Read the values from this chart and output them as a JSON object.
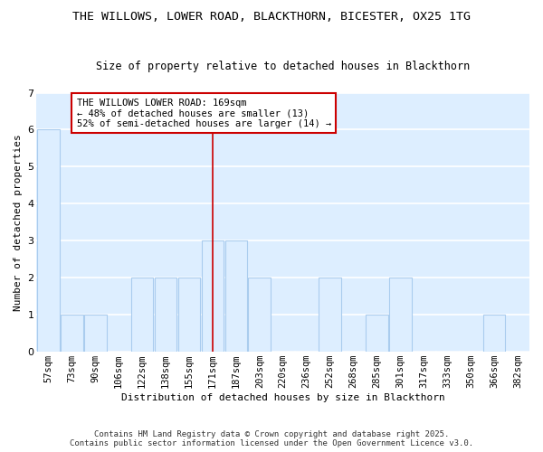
{
  "title_line1": "THE WILLOWS, LOWER ROAD, BLACKTHORN, BICESTER, OX25 1TG",
  "title_line2": "Size of property relative to detached houses in Blackthorn",
  "xlabel": "Distribution of detached houses by size in Blackthorn",
  "ylabel": "Number of detached properties",
  "categories": [
    "57sqm",
    "73sqm",
    "90sqm",
    "106sqm",
    "122sqm",
    "138sqm",
    "155sqm",
    "171sqm",
    "187sqm",
    "203sqm",
    "220sqm",
    "236sqm",
    "252sqm",
    "268sqm",
    "285sqm",
    "301sqm",
    "317sqm",
    "333sqm",
    "350sqm",
    "366sqm",
    "382sqm"
  ],
  "values": [
    6,
    1,
    1,
    0,
    2,
    2,
    2,
    3,
    3,
    2,
    0,
    0,
    2,
    0,
    1,
    2,
    0,
    0,
    0,
    1,
    0
  ],
  "bar_color": "#ddeeff",
  "bar_edge_color": "#aaccee",
  "vline_x": 7,
  "vline_color": "#cc0000",
  "annotation_text": "THE WILLOWS LOWER ROAD: 169sqm\n← 48% of detached houses are smaller (13)\n52% of semi-detached houses are larger (14) →",
  "annotation_box_color": "#ffffff",
  "annotation_box_edge": "#cc0000",
  "ylim": [
    0,
    7
  ],
  "yticks": [
    0,
    1,
    2,
    3,
    4,
    5,
    6,
    7
  ],
  "footer_text": "Contains HM Land Registry data © Crown copyright and database right 2025.\nContains public sector information licensed under the Open Government Licence v3.0.",
  "bg_color": "#ffffff",
  "plot_bg_color": "#ddeeff",
  "grid_color": "#ffffff"
}
